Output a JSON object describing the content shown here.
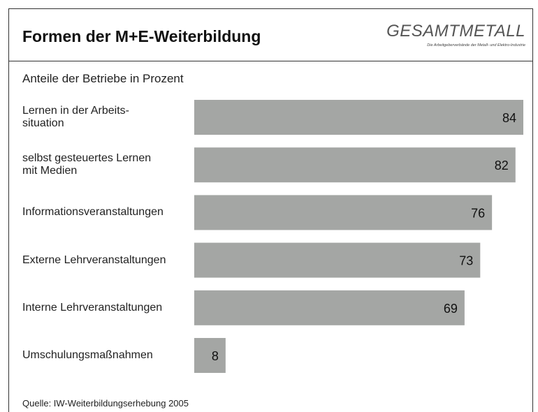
{
  "chart_data": {
    "type": "bar",
    "orientation": "horizontal",
    "title": "Formen der M+E-Weiterbildung",
    "subtitle": "Anteile der Betriebe in Prozent",
    "logo": "GESAMTMETALL",
    "logo_tagline": "Die Arbeitgeberverbände der Metall- und Elektro-Industrie",
    "source": "Quelle: IW-Weiterbildungserhebung 2005",
    "categories": [
      "Lernen in der Arbeits-\nsituation",
      "selbst gesteuertes Lernen\nmit Medien",
      "Informationsveranstaltungen",
      "Externe Lehrveranstaltungen",
      "Interne Lehrveranstaltungen",
      "Umschulungsmaßnahmen"
    ],
    "values": [
      84,
      82,
      76,
      73,
      69,
      8
    ],
    "color": "#a4a6a4"
  }
}
